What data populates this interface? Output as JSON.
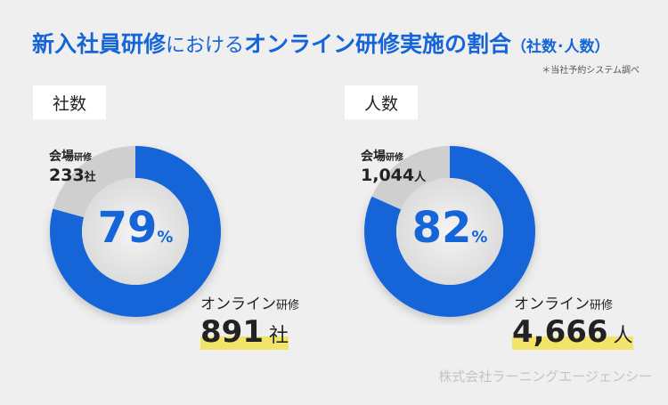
{
  "title": {
    "part1": "新入社員研修",
    "part2": "における",
    "part3": "オンライン研修実施の割合",
    "part4": "（社数･人数）"
  },
  "note": "＊当社予約システム調べ",
  "credit": "株式会社ラーニングエージェンシー",
  "colors": {
    "online": "#1565d8",
    "venue": "#cfcfcf",
    "highlight": "#f2e46a",
    "background": "#efefef"
  },
  "chart_data": [
    {
      "type": "pie",
      "title": "社数",
      "center_label": "79",
      "center_unit": "%",
      "slices": [
        {
          "name": "オンライン研修",
          "value": 891,
          "unit": "社"
        },
        {
          "name": "会場研修",
          "value": 233,
          "unit": "社"
        }
      ]
    },
    {
      "type": "pie",
      "title": "人数",
      "center_label": "82",
      "center_unit": "%",
      "slices": [
        {
          "name": "オンライン研修",
          "value": 4666,
          "unit": "人",
          "display": "4,666"
        },
        {
          "name": "会場研修",
          "value": 1044,
          "unit": "人",
          "display": "1,044"
        }
      ]
    }
  ],
  "labels": {
    "venue_main": "会場",
    "venue_sub": "研修",
    "online_main": "オンライン",
    "online_sub": "研修"
  }
}
